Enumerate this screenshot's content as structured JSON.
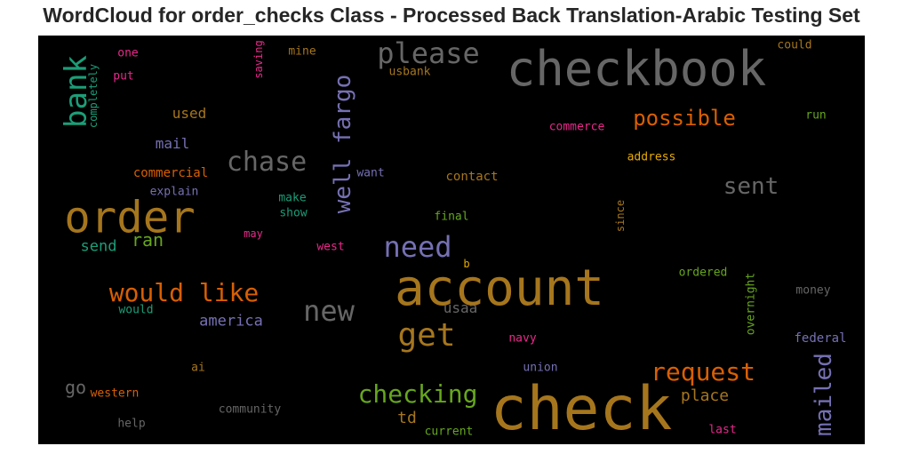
{
  "chart_data": {
    "type": "wordcloud",
    "title": "WordCloud for order_checks Class - Processed Back Translation-Arabic Testing Set",
    "background": "#000000",
    "words": [
      {
        "text": "checkbook",
        "color": "#666666",
        "vertical": false
      },
      {
        "text": "check",
        "color": "#a6761d",
        "vertical": false
      },
      {
        "text": "account",
        "color": "#a6761d",
        "vertical": false
      },
      {
        "text": "order",
        "color": "#a6761d",
        "vertical": false
      },
      {
        "text": "please",
        "color": "#666666",
        "vertical": false
      },
      {
        "text": "bank",
        "color": "#1b9e77",
        "vertical": true
      },
      {
        "text": "chase",
        "color": "#666666",
        "vertical": false
      },
      {
        "text": "well fargo",
        "color": "#7570b3",
        "vertical": true
      },
      {
        "text": "possible",
        "color": "#d95f02",
        "vertical": false
      },
      {
        "text": "sent",
        "color": "#666666",
        "vertical": false
      },
      {
        "text": "need",
        "color": "#7570b3",
        "vertical": false
      },
      {
        "text": "would like",
        "color": "#d95f02",
        "vertical": false
      },
      {
        "text": "new",
        "color": "#666666",
        "vertical": false
      },
      {
        "text": "get",
        "color": "#a6761d",
        "vertical": false
      },
      {
        "text": "request",
        "color": "#d95f02",
        "vertical": false
      },
      {
        "text": "checking",
        "color": "#66a61e",
        "vertical": false
      },
      {
        "text": "mailed",
        "color": "#7570b3",
        "vertical": true
      },
      {
        "text": "ran",
        "color": "#66a61e",
        "vertical": false
      },
      {
        "text": "go",
        "color": "#666666",
        "vertical": false
      },
      {
        "text": "place",
        "color": "#a6761d",
        "vertical": false
      },
      {
        "text": "td",
        "color": "#a6761d",
        "vertical": false
      },
      {
        "text": "used",
        "color": "#a6761d",
        "vertical": false
      },
      {
        "text": "mail",
        "color": "#7570b3",
        "vertical": false
      },
      {
        "text": "america",
        "color": "#7570b3",
        "vertical": false
      },
      {
        "text": "usaa",
        "color": "#666666",
        "vertical": false
      },
      {
        "text": "send",
        "color": "#1b9e77",
        "vertical": false
      },
      {
        "text": "one",
        "color": "#e7298a",
        "vertical": false
      },
      {
        "text": "put",
        "color": "#e7298a",
        "vertical": false
      },
      {
        "text": "completely",
        "color": "#1b9e77",
        "vertical": true
      },
      {
        "text": "saving",
        "color": "#e7298a",
        "vertical": true
      },
      {
        "text": "mine",
        "color": "#a6761d",
        "vertical": false
      },
      {
        "text": "usbank",
        "color": "#a6761d",
        "vertical": false
      },
      {
        "text": "could",
        "color": "#a6761d",
        "vertical": false
      },
      {
        "text": "run",
        "color": "#66a61e",
        "vertical": false
      },
      {
        "text": "commerce",
        "color": "#e7298a",
        "vertical": false
      },
      {
        "text": "address",
        "color": "#e6ab02",
        "vertical": false
      },
      {
        "text": "commercial",
        "color": "#d95f02",
        "vertical": false
      },
      {
        "text": "explain",
        "color": "#7570b3",
        "vertical": false
      },
      {
        "text": "want",
        "color": "#7570b3",
        "vertical": false
      },
      {
        "text": "contact",
        "color": "#a6761d",
        "vertical": false
      },
      {
        "text": "make",
        "color": "#1b9e77",
        "vertical": false
      },
      {
        "text": "show",
        "color": "#1b9e77",
        "vertical": false
      },
      {
        "text": "final",
        "color": "#66a61e",
        "vertical": false
      },
      {
        "text": "since",
        "color": "#a6761d",
        "vertical": true
      },
      {
        "text": "may",
        "color": "#e7298a",
        "vertical": false
      },
      {
        "text": "west",
        "color": "#e7298a",
        "vertical": false
      },
      {
        "text": "b",
        "color": "#e6ab02",
        "vertical": false
      },
      {
        "text": "ordered",
        "color": "#66a61e",
        "vertical": false
      },
      {
        "text": "would",
        "color": "#1b9e77",
        "vertical": false
      },
      {
        "text": "overnight",
        "color": "#66a61e",
        "vertical": true
      },
      {
        "text": "money",
        "color": "#666666",
        "vertical": false
      },
      {
        "text": "navy",
        "color": "#e7298a",
        "vertical": false
      },
      {
        "text": "federal",
        "color": "#7570b3",
        "vertical": false
      },
      {
        "text": "ai",
        "color": "#a6761d",
        "vertical": false
      },
      {
        "text": "union",
        "color": "#7570b3",
        "vertical": false
      },
      {
        "text": "western",
        "color": "#d95f02",
        "vertical": false
      },
      {
        "text": "community",
        "color": "#666666",
        "vertical": false
      },
      {
        "text": "help",
        "color": "#666666",
        "vertical": false
      },
      {
        "text": "current",
        "color": "#66a61e",
        "vertical": false
      },
      {
        "text": "last",
        "color": "#e7298a",
        "vertical": false
      }
    ]
  }
}
